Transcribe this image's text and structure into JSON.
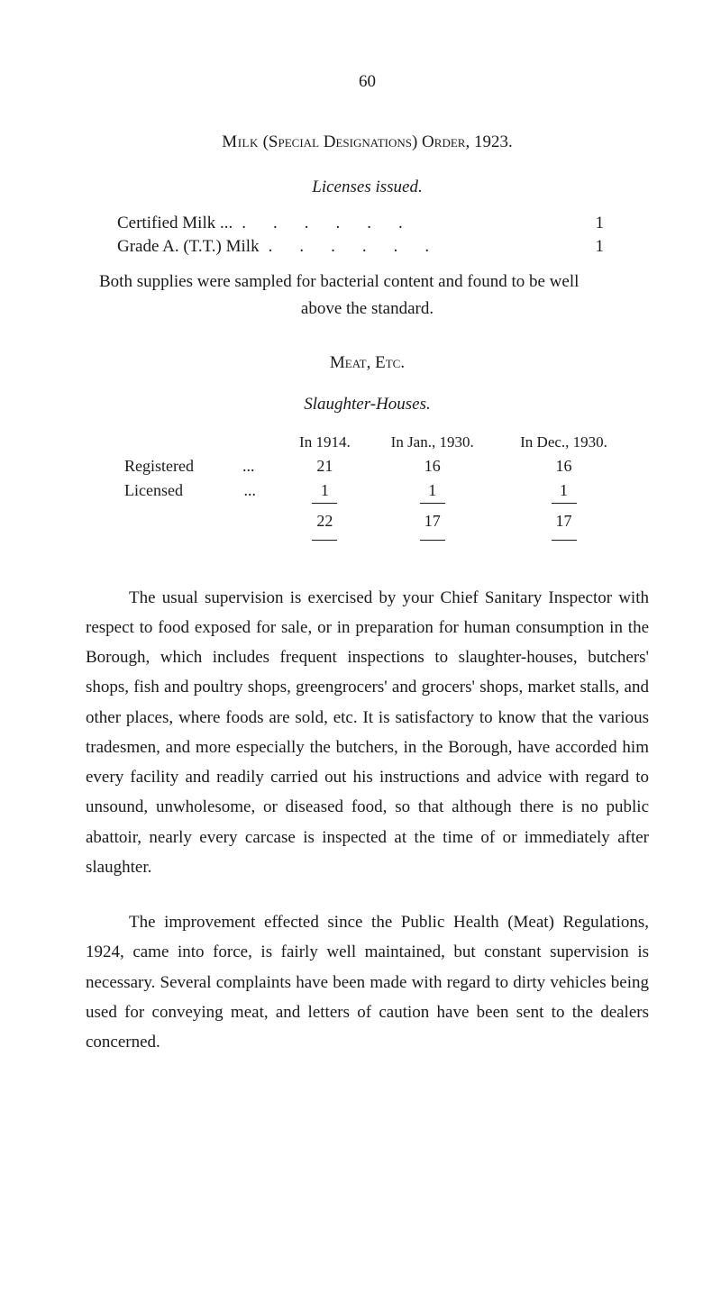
{
  "page_number": "60",
  "milk_section": {
    "title_part1": "Milk",
    "title_part2": "(Special Designations) Order, 1923.",
    "subtitle": "Licenses issued.",
    "rows": [
      {
        "label": "Certified Milk ...",
        "value": "1"
      },
      {
        "label": "Grade A. (T.T.) Milk",
        "value": "1"
      }
    ],
    "note_line1": "Both supplies were sampled for bacterial content and found to be well",
    "note_line2": "above the standard."
  },
  "meat_section": {
    "title": "Meat, Etc.",
    "subtitle": "Slaughter-Houses.",
    "col_headers": [
      "In 1914.",
      "In Jan., 1930.",
      "In Dec., 1930."
    ],
    "rows": [
      {
        "label": "Registered",
        "dots": "...",
        "v1": "21",
        "v2": "16",
        "v3": "16"
      },
      {
        "label": "Licensed",
        "dots": "...",
        "v1": "1",
        "v2": "1",
        "v3": "1"
      }
    ],
    "totals": {
      "v1": "22",
      "v2": "17",
      "v3": "17"
    }
  },
  "body": {
    "para1": "The usual supervision is exercised by your Chief Sanitary Inspector with respect to food exposed for sale, or in preparation for human consumption in the Borough, which includes frequent inspections to slaughter-houses, butchers' shops, fish and poultry shops, greengrocers' and grocers' shops, market stalls, and other places, where foods are sold, etc. It is satisfactory to know that the various tradesmen, and more especially the butchers, in the Borough, have accorded him every facility and readily carried out his instructions and advice with regard to unsound, unwholesome, or diseased food, so that although there is no public abattoir, nearly every carcase is inspected at the time of or immediately after slaughter.",
    "para2": "The improvement effected since the Public Health (Meat) Regulations, 1924, came into force, is fairly well maintained, but constant supervision is necessary. Several complaints have been made with regard to dirty vehicles being used for conveying meat, and letters of caution have been sent to the dealers concerned."
  },
  "colors": {
    "text": "#1a1a1a",
    "background": "#ffffff"
  }
}
